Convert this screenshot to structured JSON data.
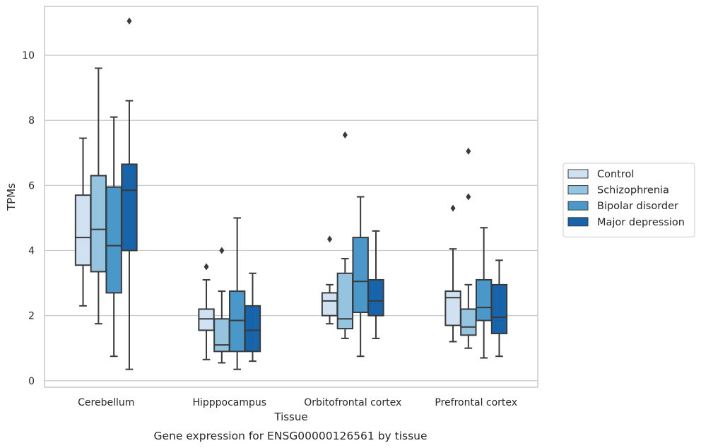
{
  "chart_data": {
    "type": "boxplot",
    "xlabel": "Tissue",
    "ylabel": "TPMs",
    "caption": "Gene expression for ENSG00000126561 by tissue",
    "categories": [
      "Cerebellum",
      "Hipppocampus",
      "Orbitofrontal cortex",
      "Prefrontal cortex"
    ],
    "ylim": [
      -0.2,
      11.5
    ],
    "yticks": [
      0,
      2,
      4,
      6,
      8,
      10
    ],
    "ytick_labels": [
      "0",
      "2",
      "4",
      "6",
      "8",
      "10"
    ],
    "grid": "horizontal",
    "legend_position": "right",
    "series": [
      {
        "name": "Control",
        "color": "#d0e1f2",
        "boxes": [
          {
            "whisker_low": 2.3,
            "q1": 3.55,
            "median": 4.4,
            "q3": 5.7,
            "whisker_high": 7.45,
            "outliers": []
          },
          {
            "whisker_low": 0.65,
            "q1": 1.55,
            "median": 1.9,
            "q3": 2.2,
            "whisker_high": 3.1,
            "outliers": [
              3.5
            ]
          },
          {
            "whisker_low": 1.75,
            "q1": 2.0,
            "median": 2.45,
            "q3": 2.7,
            "whisker_high": 2.95,
            "outliers": [
              4.35
            ]
          },
          {
            "whisker_low": 1.2,
            "q1": 1.7,
            "median": 2.55,
            "q3": 2.75,
            "whisker_high": 4.05,
            "outliers": [
              5.3
            ]
          }
        ]
      },
      {
        "name": "Schizophrenia",
        "color": "#94c4df",
        "boxes": [
          {
            "whisker_low": 1.75,
            "q1": 3.35,
            "median": 4.65,
            "q3": 6.3,
            "whisker_high": 9.6,
            "outliers": []
          },
          {
            "whisker_low": 0.55,
            "q1": 0.9,
            "median": 1.1,
            "q3": 1.9,
            "whisker_high": 2.75,
            "outliers": [
              4.0
            ]
          },
          {
            "whisker_low": 1.3,
            "q1": 1.6,
            "median": 1.9,
            "q3": 3.3,
            "whisker_high": 3.75,
            "outliers": [
              7.55
            ]
          },
          {
            "whisker_low": 1.0,
            "q1": 1.4,
            "median": 1.65,
            "q3": 2.2,
            "whisker_high": 2.95,
            "outliers": [
              5.65,
              7.05
            ]
          }
        ]
      },
      {
        "name": "Bipolar disorder",
        "color": "#4a98c9",
        "boxes": [
          {
            "whisker_low": 0.75,
            "q1": 2.7,
            "median": 4.15,
            "q3": 5.95,
            "whisker_high": 8.1,
            "outliers": []
          },
          {
            "whisker_low": 0.35,
            "q1": 0.9,
            "median": 1.85,
            "q3": 2.75,
            "whisker_high": 5.0,
            "outliers": []
          },
          {
            "whisker_low": 0.75,
            "q1": 2.1,
            "median": 3.05,
            "q3": 4.4,
            "whisker_high": 5.65,
            "outliers": []
          },
          {
            "whisker_low": 0.7,
            "q1": 1.85,
            "median": 2.25,
            "q3": 3.1,
            "whisker_high": 4.7,
            "outliers": []
          }
        ]
      },
      {
        "name": "Major depression",
        "color": "#1764ab",
        "boxes": [
          {
            "whisker_low": 0.35,
            "q1": 4.0,
            "median": 5.85,
            "q3": 6.65,
            "whisker_high": 8.6,
            "outliers": [
              11.05
            ]
          },
          {
            "whisker_low": 0.6,
            "q1": 0.9,
            "median": 1.55,
            "q3": 2.3,
            "whisker_high": 3.3,
            "outliers": []
          },
          {
            "whisker_low": 1.3,
            "q1": 2.0,
            "median": 2.45,
            "q3": 3.1,
            "whisker_high": 4.6,
            "outliers": []
          },
          {
            "whisker_low": 0.75,
            "q1": 1.45,
            "median": 1.95,
            "q3": 2.95,
            "whisker_high": 3.7,
            "outliers": []
          }
        ]
      }
    ]
  }
}
